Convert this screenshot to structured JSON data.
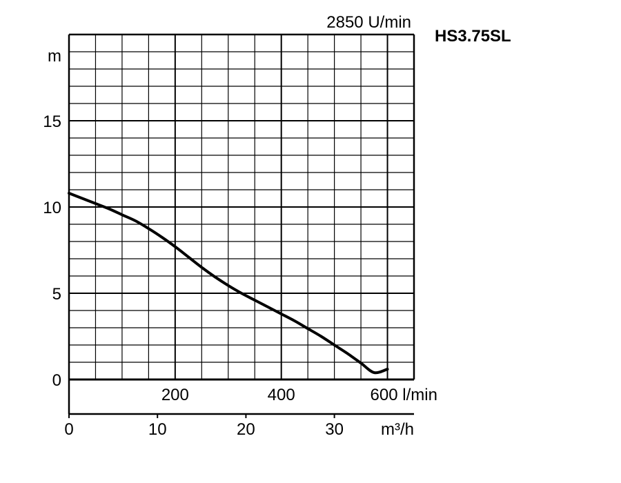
{
  "chart_data": {
    "type": "line",
    "title": "HS3.75SL",
    "speed_label": "2850 U/min",
    "ylabel": "m",
    "ylim": [
      0,
      20
    ],
    "y_ticks": [
      0,
      5,
      10,
      15
    ],
    "x_primary": {
      "unit": "l/min",
      "range": [
        0,
        650
      ],
      "ticks": [
        200,
        400,
        600
      ],
      "tick_labels": [
        "200",
        "400",
        "600 l/min"
      ]
    },
    "x_secondary": {
      "unit": "m³/h",
      "range": [
        0,
        39
      ],
      "ticks": [
        0,
        10,
        20,
        30
      ],
      "tick_labels": [
        "0",
        "10",
        "20",
        "30"
      ]
    },
    "grid": true,
    "series": [
      {
        "x": [
          0,
          25,
          50,
          75,
          100,
          125,
          150,
          175,
          200,
          225,
          250,
          275,
          300,
          325,
          350,
          375,
          400,
          425,
          450,
          475,
          500,
          525,
          550,
          575,
          600
        ],
        "y": [
          10.8,
          10.5,
          10.2,
          9.9,
          9.55,
          9.2,
          8.75,
          8.25,
          7.7,
          7.1,
          6.5,
          5.95,
          5.45,
          5.0,
          4.6,
          4.2,
          3.8,
          3.4,
          2.95,
          2.5,
          2.0,
          1.5,
          0.95,
          0.4,
          0.6
        ]
      }
    ]
  }
}
